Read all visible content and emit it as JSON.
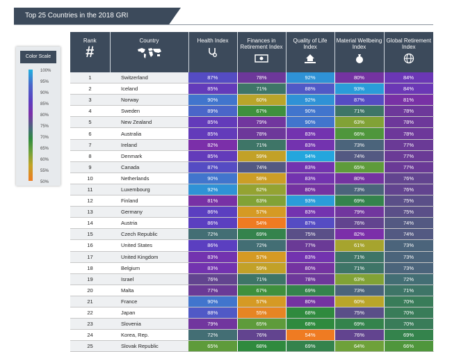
{
  "header": {
    "title": "Top 25 Countries in the 2018 GRI"
  },
  "color_scale": {
    "title": "Color Scale",
    "labels": [
      "100%",
      "95%",
      "90%",
      "85%",
      "80%",
      "75%",
      "70%",
      "65%",
      "60%",
      "55%",
      "50%"
    ]
  },
  "columns": {
    "rank": "Rank",
    "rank_icon": "#",
    "country": "Country",
    "health": "Health Index",
    "finances": "Finances in Retirement Index",
    "quality": "Quality of Life Index",
    "material": "Material Wellbeing Index",
    "global": "Global Retirement Index",
    "country_icon": "world-map-icon",
    "health_icon": "stethoscope-icon",
    "finances_icon": "money-icon",
    "quality_icon": "house-hand-icon",
    "material_icon": "money-bag-icon",
    "global_icon": "globe-icon"
  },
  "rows": [
    {
      "rank": "1",
      "country": "Switzerland",
      "health": "87%",
      "finances": "78%",
      "quality": "92%",
      "material": "80%",
      "global": "84%"
    },
    {
      "rank": "2",
      "country": "Iceland",
      "health": "85%",
      "finances": "71%",
      "quality": "88%",
      "material": "93%",
      "global": "84%"
    },
    {
      "rank": "3",
      "country": "Norway",
      "health": "90%",
      "finances": "60%",
      "quality": "92%",
      "material": "87%",
      "global": "81%"
    },
    {
      "rank": "4",
      "country": "Sweden",
      "health": "89%",
      "finances": "67%",
      "quality": "90%",
      "material": "71%",
      "global": "78%"
    },
    {
      "rank": "5",
      "country": "New Zealand",
      "health": "85%",
      "finances": "79%",
      "quality": "90%",
      "material": "63%",
      "global": "78%"
    },
    {
      "rank": "6",
      "country": "Australia",
      "health": "85%",
      "finances": "78%",
      "quality": "83%",
      "material": "66%",
      "global": "78%"
    },
    {
      "rank": "7",
      "country": "Ireland",
      "health": "82%",
      "finances": "71%",
      "quality": "83%",
      "material": "73%",
      "global": "77%"
    },
    {
      "rank": "8",
      "country": "Denmark",
      "health": "85%",
      "finances": "59%",
      "quality": "94%",
      "material": "74%",
      "global": "77%"
    },
    {
      "rank": "9",
      "country": "Canada",
      "health": "87%",
      "finances": "74%",
      "quality": "83%",
      "material": "65%",
      "global": "77%"
    },
    {
      "rank": "10",
      "country": "Netherlands",
      "health": "90%",
      "finances": "58%",
      "quality": "83%",
      "material": "80%",
      "global": "76%"
    },
    {
      "rank": "11",
      "country": "Luxembourg",
      "health": "92%",
      "finances": "62%",
      "quality": "80%",
      "material": "73%",
      "global": "76%"
    },
    {
      "rank": "12",
      "country": "Finland",
      "health": "81%",
      "finances": "63%",
      "quality": "93%",
      "material": "69%",
      "global": "75%"
    },
    {
      "rank": "13",
      "country": "Germany",
      "health": "86%",
      "finances": "57%",
      "quality": "83%",
      "material": "79%",
      "global": "75%"
    },
    {
      "rank": "14",
      "country": "Austria",
      "health": "86%",
      "finances": "54%",
      "quality": "87%",
      "material": "76%",
      "global": "74%"
    },
    {
      "rank": "15",
      "country": "Czech Republic",
      "health": "72%",
      "finances": "69%",
      "quality": "75%",
      "material": "82%",
      "global": "74%"
    },
    {
      "rank": "16",
      "country": "United States",
      "health": "86%",
      "finances": "72%",
      "quality": "77%",
      "material": "61%",
      "global": "73%"
    },
    {
      "rank": "17",
      "country": "United Kingdom",
      "health": "83%",
      "finances": "57%",
      "quality": "83%",
      "material": "71%",
      "global": "73%"
    },
    {
      "rank": "18",
      "country": "Belgium",
      "health": "83%",
      "finances": "59%",
      "quality": "80%",
      "material": "71%",
      "global": "73%"
    },
    {
      "rank": "19",
      "country": "Israel",
      "health": "76%",
      "finances": "71%",
      "quality": "78%",
      "material": "63%",
      "global": "72%"
    },
    {
      "rank": "20",
      "country": "Malta",
      "health": "77%",
      "finances": "67%",
      "quality": "69%",
      "material": "73%",
      "global": "71%"
    },
    {
      "rank": "21",
      "country": "France",
      "health": "90%",
      "finances": "57%",
      "quality": "80%",
      "material": "60%",
      "global": "70%"
    },
    {
      "rank": "22",
      "country": "Japan",
      "health": "88%",
      "finances": "55%",
      "quality": "68%",
      "material": "75%",
      "global": "70%"
    },
    {
      "rank": "23",
      "country": "Slovenia",
      "health": "79%",
      "finances": "65%",
      "quality": "68%",
      "material": "69%",
      "global": "70%"
    },
    {
      "rank": "24",
      "country": "Korea, Rep.",
      "health": "72%",
      "finances": "76%",
      "quality": "54%",
      "material": "76%",
      "global": "69%"
    },
    {
      "rank": "25",
      "country": "Slovak Republic",
      "health": "65%",
      "finances": "68%",
      "quality": "69%",
      "material": "64%",
      "global": "66%"
    }
  ],
  "colors": {
    "header_bg": "#3c4a5b",
    "scale": [
      "#ef7b22",
      "#c2a426",
      "#6ea13a",
      "#2f8a3e",
      "#436e74",
      "#7b2fa9",
      "#5b3fc0",
      "#4a66c9",
      "#1fb0e0"
    ]
  }
}
